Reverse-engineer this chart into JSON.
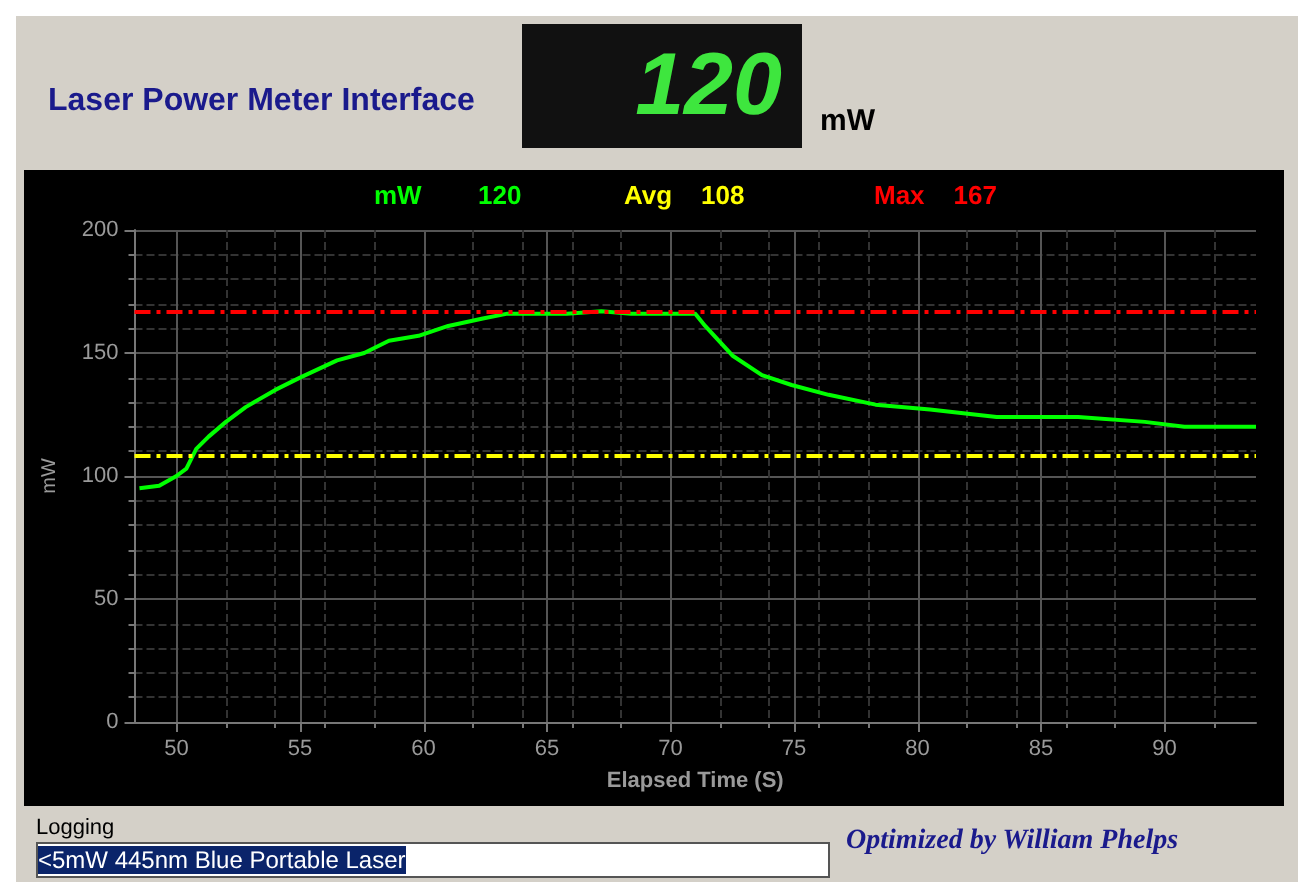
{
  "chart_data": {
    "type": "line",
    "title": "Laser Power Meter Interface",
    "xlabel": "Elapsed Time (S)",
    "ylabel": "mW",
    "annotations": [
      "120",
      "mW",
      "Logging",
      "<5mW 445nm Blue Portable Laser",
      "Optimized by William Phelps"
    ],
    "x": [
      48.5,
      49.3,
      50,
      50.4,
      50.8,
      51.3,
      52,
      52.8,
      54,
      55,
      56.5,
      57.6,
      58.6,
      59.8,
      61,
      62.4,
      63.4,
      65.8,
      67.2,
      68.4,
      70.3,
      71,
      71.4,
      72.5,
      73.7,
      74.9,
      76.4,
      78.3,
      80.5,
      83.2,
      86.5,
      89.2,
      90.8,
      93.7
    ],
    "series": [
      {
        "name": "mW",
        "color": "#00ff00",
        "values": [
          95,
          96,
          100,
          103,
          111,
          116,
          122,
          128,
          135,
          140,
          147,
          150,
          155,
          157,
          161,
          164,
          166,
          166,
          167,
          166,
          166,
          166,
          161,
          149,
          141,
          137,
          133,
          129,
          127,
          124,
          124,
          122,
          120,
          120
        ]
      }
    ],
    "xlim": [
      48.3,
      93.7
    ],
    "xticks": [
      50,
      55,
      60,
      65,
      70,
      75,
      80,
      85,
      90
    ],
    "ylim": [
      0,
      200
    ],
    "yticks": [
      0,
      50,
      100,
      150,
      200
    ],
    "ref_lines": [
      {
        "axis": "y",
        "value": 108,
        "label": "Avg    108",
        "color": "#ffff00",
        "line_style": "dashed"
      },
      {
        "axis": "y",
        "value": 167,
        "label": "Max    167",
        "color": "#ff0000",
        "line_style": "dashed"
      }
    ],
    "grid": true,
    "legend": "top",
    "marker": "none",
    "line_style": "solid"
  }
}
